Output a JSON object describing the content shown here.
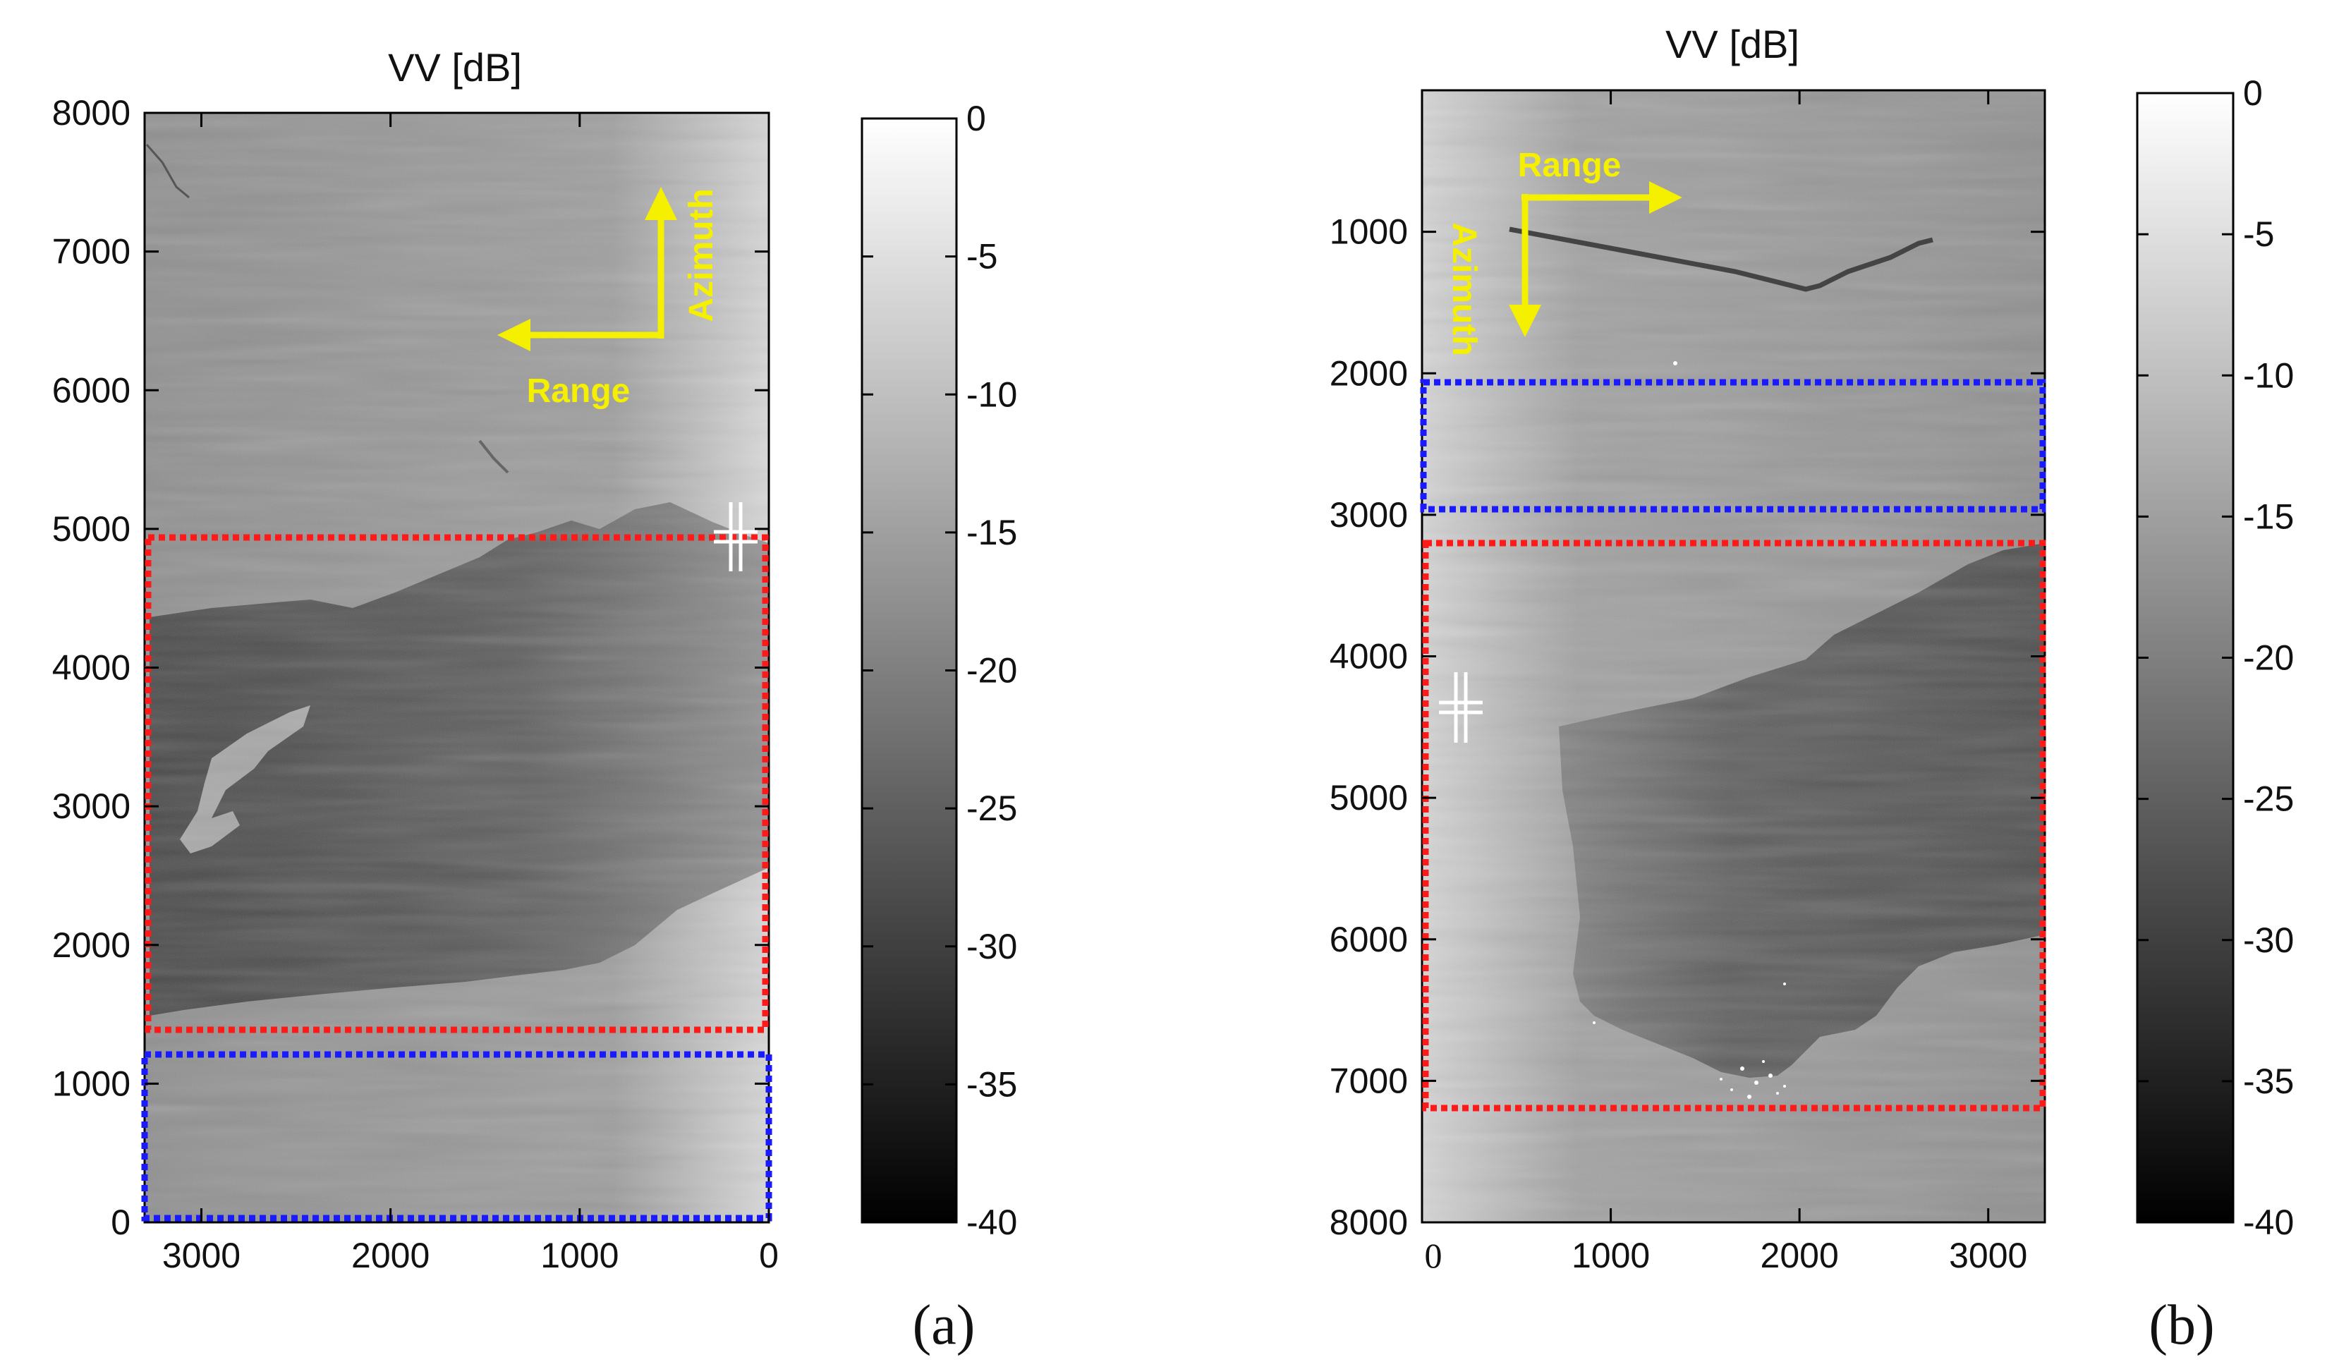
{
  "figure": {
    "panels": [
      {
        "id": "a",
        "label": "(a)"
      },
      {
        "id": "b",
        "label": "(b)"
      }
    ],
    "annotations": {
      "range": "Range",
      "azimuth": "Azimuth"
    },
    "colors": {
      "highlight_box": "#ff1a1a",
      "reference_box": "#1a1aff",
      "arrow": "#f5ef00",
      "marker": "#ffffff"
    }
  },
  "chart_data": [
    {
      "type": "heatmap",
      "panel": "(a)",
      "title": "VV [dB]",
      "xlabel": "",
      "ylabel": "",
      "xlim": [
        3300,
        0
      ],
      "ylim": [
        0,
        8000
      ],
      "x_ticks": [
        "3000",
        "2000",
        "1000",
        "0"
      ],
      "y_ticks": [
        "8000",
        "7000",
        "6000",
        "5000",
        "4000",
        "3000",
        "2000",
        "1000",
        "0"
      ],
      "colorbar": {
        "label": "VV [dB]",
        "range": [
          -40,
          0
        ],
        "ticks": [
          "0",
          "-5",
          "-10",
          "-15",
          "-20",
          "-25",
          "-30",
          "-35",
          "-40"
        ],
        "colormap": "gray"
      },
      "boxes": [
        {
          "color": "red",
          "x_range": [
            3300,
            0
          ],
          "y_range": [
            1500,
            4950
          ]
        },
        {
          "color": "blue",
          "x_range": [
            3300,
            0
          ],
          "y_range": [
            100,
            1250
          ]
        }
      ],
      "marker": {
        "x": 200,
        "y": 4950
      },
      "directions": {
        "range": "Range",
        "azimuth": "Azimuth"
      }
    },
    {
      "type": "heatmap",
      "panel": "(b)",
      "title": "VV [dB]",
      "xlabel": "",
      "ylabel": "",
      "xlim": [
        0,
        3300
      ],
      "ylim": [
        8000,
        0
      ],
      "x_ticks": [
        "0",
        "1000",
        "2000",
        "3000"
      ],
      "y_ticks": [
        "1000",
        "2000",
        "3000",
        "4000",
        "5000",
        "6000",
        "7000",
        "8000"
      ],
      "colorbar": {
        "label": "VV [dB]",
        "range": [
          -40,
          0
        ],
        "ticks": [
          "0",
          "-5",
          "-10",
          "-15",
          "-20",
          "-25",
          "-30",
          "-35",
          "-40"
        ],
        "colormap": "gray"
      },
      "boxes": [
        {
          "color": "blue",
          "x_range": [
            0,
            3300
          ],
          "y_range": [
            2050,
            2980
          ]
        },
        {
          "color": "red",
          "x_range": [
            0,
            3300
          ],
          "y_range": [
            3200,
            7220
          ]
        }
      ],
      "marker": {
        "x": 200,
        "y": 4350
      },
      "directions": {
        "range": "Range",
        "azimuth": "Azimuth"
      }
    }
  ]
}
